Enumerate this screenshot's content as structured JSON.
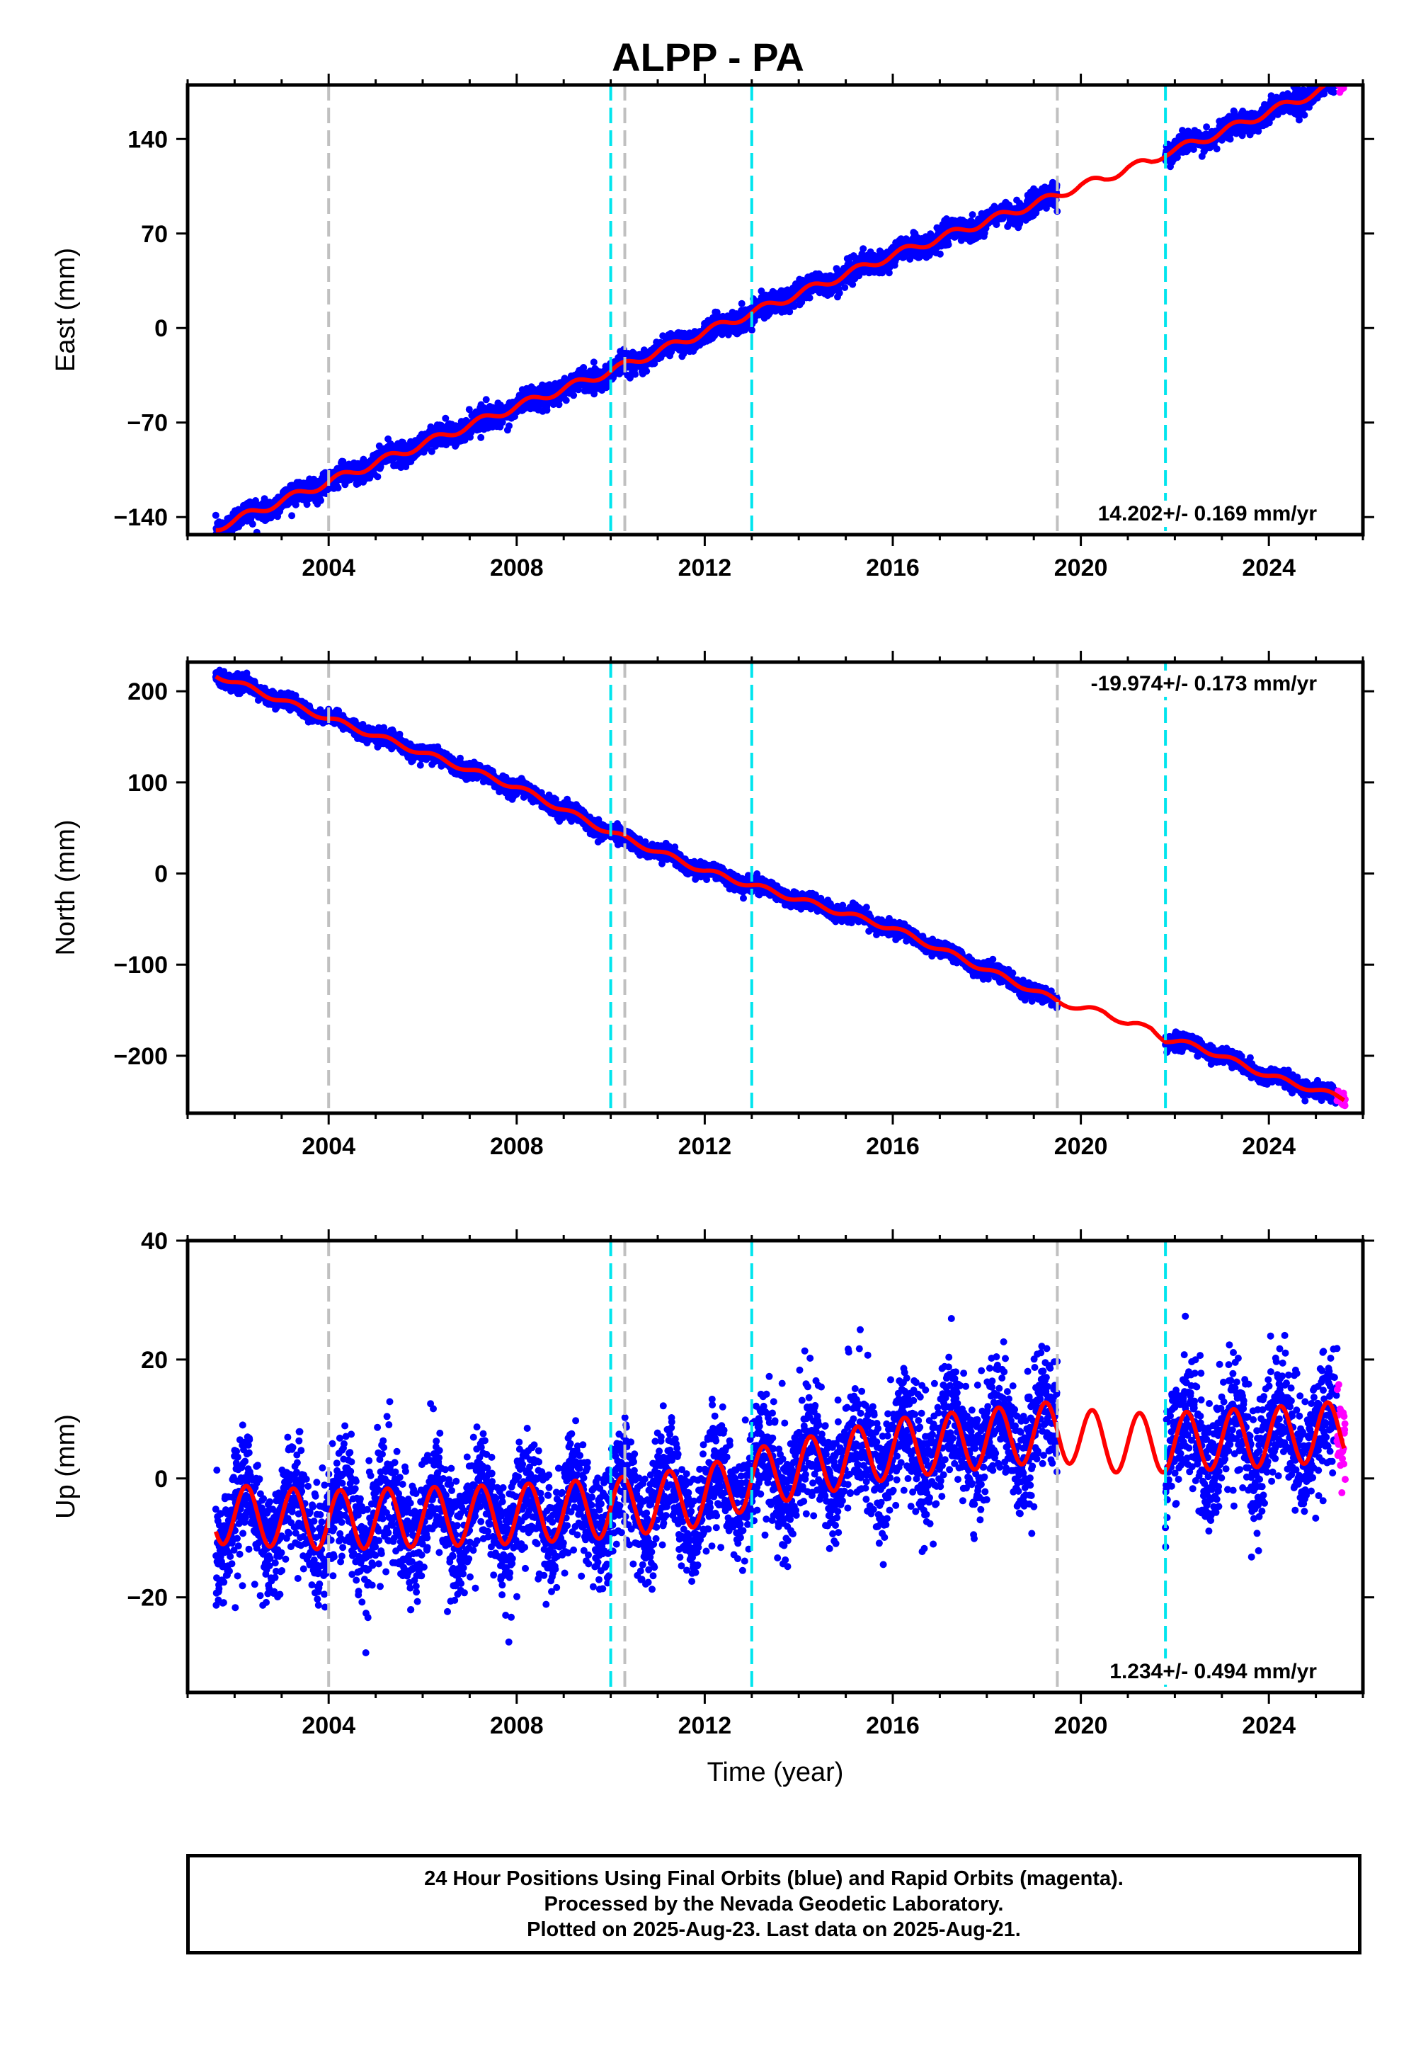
{
  "title": "ALPP - PA",
  "colors": {
    "final_orbits": "#0000ff",
    "rapid_orbits": "#ff00ff",
    "model": "#ff0000",
    "gray_line": "#c0c0c0",
    "cyan_line": "#00e5ee"
  },
  "caption": {
    "line1": "24 Hour Positions Using Final Orbits (blue) and Rapid Orbits (magenta).",
    "line2": "Processed by the Nevada Geodetic Laboratory.",
    "line3": "Plotted on 2025-Aug-23. Last data on 2025-Aug-21."
  },
  "chart_data": [
    {
      "type": "scatter",
      "panel": "east",
      "ylabel": "East (mm)",
      "xlabel": "",
      "xlim": [
        2001.0,
        2026.0
      ],
      "ylim": [
        -153,
        180
      ],
      "xticks": [
        2004,
        2008,
        2012,
        2016,
        2020,
        2024
      ],
      "yticks": [
        -140,
        -70,
        0,
        70,
        140
      ],
      "rate_label": "14.202+/- 0.169 mm/yr",
      "rate_position": "bottom-right",
      "grid": false,
      "data_span": [
        2001.6,
        2019.5
      ],
      "data_span2": [
        2021.8,
        2025.6
      ],
      "rapid_span": [
        2025.45,
        2025.63
      ],
      "model_line": [
        [
          2001.6,
          -148
        ],
        [
          2004.0,
          -114
        ],
        [
          2008.0,
          -58
        ],
        [
          2010.0,
          -32
        ],
        [
          2012.0,
          -3
        ],
        [
          2016.0,
          54
        ],
        [
          2019.5,
          98
        ],
        [
          2020.0,
          106
        ],
        [
          2020.5,
          110
        ],
        [
          2021.0,
          119
        ],
        [
          2021.5,
          123
        ],
        [
          2021.8,
          130
        ],
        [
          2022.5,
          138
        ],
        [
          2024.0,
          160
        ],
        [
          2025.6,
          183
        ]
      ],
      "model_seasonal_amp": 3,
      "scatter_noise": 4,
      "gray_lines": [
        2004.0,
        2010.3,
        2019.5
      ],
      "cyan_lines": [
        2010.0,
        2013.0,
        2021.8
      ]
    },
    {
      "type": "scatter",
      "panel": "north",
      "ylabel": "North (mm)",
      "xlabel": "",
      "xlim": [
        2001.0,
        2026.0
      ],
      "ylim": [
        -263,
        232
      ],
      "xticks": [
        2004,
        2008,
        2012,
        2016,
        2020,
        2024
      ],
      "yticks": [
        -200,
        -100,
        0,
        100,
        200
      ],
      "rate_label": "-19.974+/- 0.173 mm/yr",
      "rate_position": "top-right",
      "grid": false,
      "data_span": [
        2001.6,
        2019.5
      ],
      "data_span2": [
        2021.8,
        2025.6
      ],
      "rapid_span": [
        2025.45,
        2025.63
      ],
      "model_line": [
        [
          2001.6,
          218
        ],
        [
          2004.0,
          170
        ],
        [
          2008.0,
          95
        ],
        [
          2010.0,
          45
        ],
        [
          2012.0,
          3
        ],
        [
          2016.0,
          -60
        ],
        [
          2019.5,
          -140
        ],
        [
          2020.0,
          -148
        ],
        [
          2020.5,
          -152
        ],
        [
          2021.0,
          -165
        ],
        [
          2021.5,
          -170
        ],
        [
          2021.8,
          -182
        ],
        [
          2022.5,
          -190
        ],
        [
          2024.0,
          -222
        ],
        [
          2025.6,
          -247
        ]
      ],
      "model_seasonal_amp": 3,
      "scatter_noise": 4,
      "gray_lines": [
        2004.0,
        2010.3,
        2019.5
      ],
      "cyan_lines": [
        2010.0,
        2013.0,
        2021.8
      ]
    },
    {
      "type": "scatter",
      "panel": "up",
      "ylabel": "Up (mm)",
      "xlabel": "Time (year)",
      "xlim": [
        2001.0,
        2026.0
      ],
      "ylim": [
        -36,
        40
      ],
      "xticks": [
        2004,
        2008,
        2012,
        2016,
        2020,
        2024
      ],
      "yticks": [
        -20,
        0,
        20,
        40
      ],
      "rate_label": "1.234+/- 0.494 mm/yr",
      "rate_position": "bottom-right",
      "grid": false,
      "data_span": [
        2001.6,
        2019.5
      ],
      "data_span2": [
        2021.8,
        2025.6
      ],
      "rapid_span": [
        2025.45,
        2025.63
      ],
      "model_line": [
        [
          2001.6,
          -6
        ],
        [
          2004.0,
          -7
        ],
        [
          2008.0,
          -6
        ],
        [
          2010.0,
          -5
        ],
        [
          2012.0,
          -3
        ],
        [
          2013.0,
          0
        ],
        [
          2016.0,
          5
        ],
        [
          2019.5,
          8
        ],
        [
          2020.5,
          6
        ],
        [
          2021.8,
          6
        ],
        [
          2024.0,
          7
        ],
        [
          2025.6,
          8
        ]
      ],
      "model_seasonal_amp": 5,
      "scatter_noise": 5,
      "gray_lines": [
        2004.0,
        2010.3,
        2019.5
      ],
      "cyan_lines": [
        2010.0,
        2013.0,
        2021.8
      ]
    }
  ]
}
